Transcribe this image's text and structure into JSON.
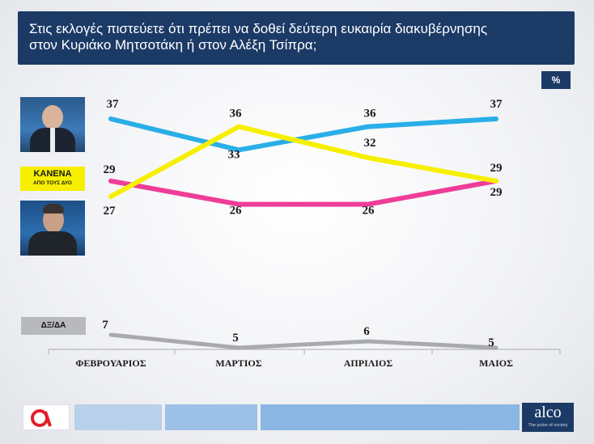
{
  "title": "Στις εκλογές πιστεύετε ότι πρέπει να δοθεί δεύτερη ευκαιρία διακυβέρνησης\nστον Κυριάκο Μητσοτάκη ή στον Αλέξη Τσίπρα;",
  "percent_label": "%",
  "kanena_label": "ΚΑΝΕΝΑ",
  "kanena_sublabel": "ΑΠΟ ΤΟΥΣ ΔΥΟ",
  "dkda_label": "ΔΞ/ΔΑ",
  "alco_logo_text": "alco",
  "alco_tagline": "The pulse of society",
  "colors": {
    "mitsotakis": "#2aaee8",
    "kanena": "#f6ef00",
    "tsipras": "#ef3d97",
    "dkda": "#a9aaad",
    "navy": "#1c3a66"
  },
  "chart_data": {
    "type": "line",
    "categories": [
      "ΦΕΒΡΟΥΑΡΙΟΣ",
      "ΜΑΡΤΙΟΣ",
      "ΑΠΡΙΛΙΟΣ",
      "ΜΑΙΟΣ"
    ],
    "series": [
      {
        "key": "mitsotakis",
        "values": [
          37,
          33,
          36,
          37
        ]
      },
      {
        "key": "kanena",
        "name": "ΚΑΝΕΝΑ ΑΠΟ ΤΟΥΣ ΔΥΟ",
        "values": [
          27,
          36,
          32,
          29
        ]
      },
      {
        "key": "tsipras",
        "values": [
          29,
          26,
          26,
          29
        ]
      },
      {
        "key": "dkda",
        "name": "ΔΞ/ΔΑ",
        "values": [
          7,
          5,
          6,
          5
        ]
      }
    ],
    "unit": "%",
    "ylim": [
      5,
      37
    ],
    "grid": false,
    "legend": "left"
  }
}
